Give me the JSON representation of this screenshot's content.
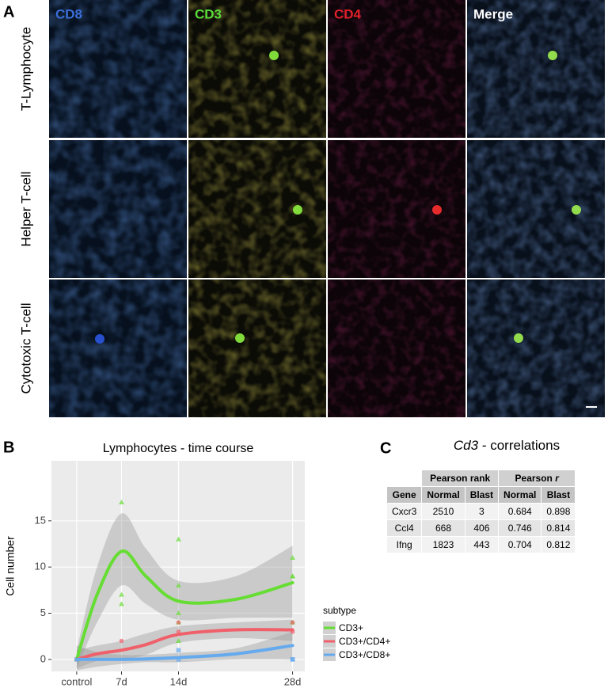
{
  "panel_a": {
    "letter": "A",
    "columns": [
      "CD8",
      "CD3",
      "CD4",
      "Merge"
    ],
    "rows": [
      "T-Lymphocyte",
      "Helper T-cell",
      "Cytotoxic T-cell"
    ]
  },
  "panel_b": {
    "letter": "B"
  },
  "chart_data": {
    "type": "line",
    "title": "Lymphocytes - time course",
    "y_label": "Cell number",
    "legend_title": "subtype",
    "legend_position": "right",
    "grid": true,
    "x": [
      1.5,
      4,
      7,
      10,
      14,
      21,
      28
    ],
    "xlim": [
      -1.6,
      29.5
    ],
    "xticks": [
      {
        "value": 1.5,
        "label": "control"
      },
      {
        "value": 7,
        "label": "7d"
      },
      {
        "value": 14,
        "label": "14d"
      },
      {
        "value": 28,
        "label": "28d"
      }
    ],
    "ylim": [
      -1.3,
      21.5
    ],
    "yticks": [
      0,
      5,
      10,
      15
    ],
    "series": [
      {
        "name": "CD3+",
        "color": "#66dd33",
        "shape": "triangle",
        "values": [
          0,
          7,
          11.7,
          9,
          6.3,
          6.5,
          8.3
        ],
        "lower": [
          -1,
          4,
          8,
          6,
          4.3,
          4.5,
          4.5
        ],
        "upper": [
          1,
          10,
          15.8,
          12,
          8.5,
          9,
          12.3
        ],
        "points_x": [
          1.5,
          7,
          7,
          7,
          14,
          14,
          14,
          14,
          14,
          28,
          28,
          28,
          28
        ],
        "points_y": [
          0,
          17,
          7,
          6,
          13,
          8,
          5,
          4,
          2,
          11,
          9,
          9,
          4
        ]
      },
      {
        "name": "CD3+/CD4+",
        "color": "#f0606a",
        "shape": "circle",
        "values": [
          0,
          0.6,
          1,
          1.6,
          2.7,
          3.2,
          3.2
        ],
        "lower": [
          -1,
          -0.2,
          0,
          0.5,
          1.8,
          2.3,
          2
        ],
        "upper": [
          1,
          1.5,
          2,
          2.8,
          3.6,
          4,
          4.3
        ],
        "points_x": [
          1.5,
          7,
          14,
          14,
          28,
          28
        ],
        "points_y": [
          0,
          2,
          4,
          3,
          4,
          3
        ]
      },
      {
        "name": "CD3+/CD8+",
        "color": "#66aaee",
        "shape": "square",
        "values": [
          0,
          0,
          0,
          0.05,
          0.2,
          0.6,
          1.5
        ],
        "lower": [
          -1.2,
          -0.8,
          -0.5,
          -0.3,
          -0.3,
          0,
          0
        ],
        "upper": [
          1.5,
          0.8,
          0.5,
          0.5,
          0.7,
          1.2,
          3
        ],
        "points_x": [
          1.5,
          14,
          14,
          28,
          28
        ],
        "points_y": [
          0,
          1,
          0,
          0,
          0
        ]
      }
    ]
  },
  "panel_c": {
    "letter": "C",
    "title": {
      "gene": "Cd3",
      "text": "- correlations"
    },
    "table": {
      "group_headers": [
        {
          "text": "Pearson rank"
        },
        {
          "text": "Pearson",
          "symbol": "r"
        }
      ],
      "headers": [
        "Gene",
        "Normal",
        "Blast",
        "Normal",
        "Blast"
      ],
      "rows": [
        [
          "Cxcr3",
          2510,
          3,
          0.684,
          0.898
        ],
        [
          "Ccl4",
          668,
          406,
          0.746,
          0.814
        ],
        [
          "Ifng",
          1823,
          443,
          0.704,
          0.812
        ]
      ]
    }
  }
}
